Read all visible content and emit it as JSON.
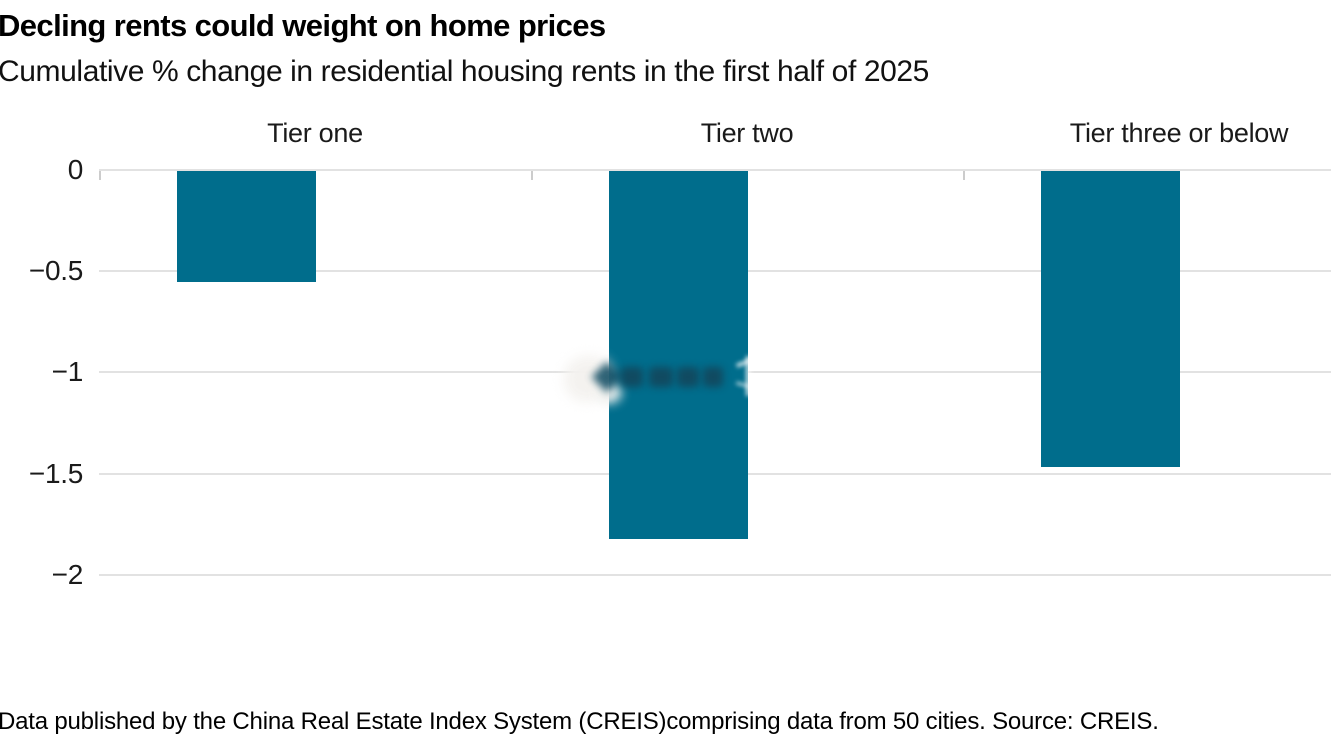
{
  "header": {
    "title": "Decling rents could weight on home prices",
    "subtitle": "Cumulative % change in residential housing rents in the first half of 2025"
  },
  "footer": {
    "note": "Data published by the China Real Estate Index System (CREIS)comprising data from 50 cities. Source: CREIS."
  },
  "watermark": {
    "description": "blurred illegible watermark logo over Tier two bar"
  },
  "chart_data": {
    "type": "bar",
    "categories": [
      "Tier one",
      "Tier two",
      "Tier three or below"
    ],
    "values": [
      -0.55,
      -1.82,
      -1.46
    ],
    "title": "Decling rents could weight on home prices",
    "subtitle": "Cumulative % change in residential housing rents in the first half of 2025",
    "xlabel": "",
    "ylabel": "",
    "ylim": [
      -2.3,
      0
    ],
    "yticks": [
      0,
      -0.5,
      -1,
      -1.5,
      -2
    ],
    "ytick_labels": [
      "0",
      "−0.5",
      "−1",
      "−1.5",
      "−2"
    ],
    "grid": "horizontal gridlines on",
    "legend": "none",
    "bar_color": "#006d8c",
    "gridline_color": "#e2e2e2",
    "text_color": "#1a1a1a"
  }
}
